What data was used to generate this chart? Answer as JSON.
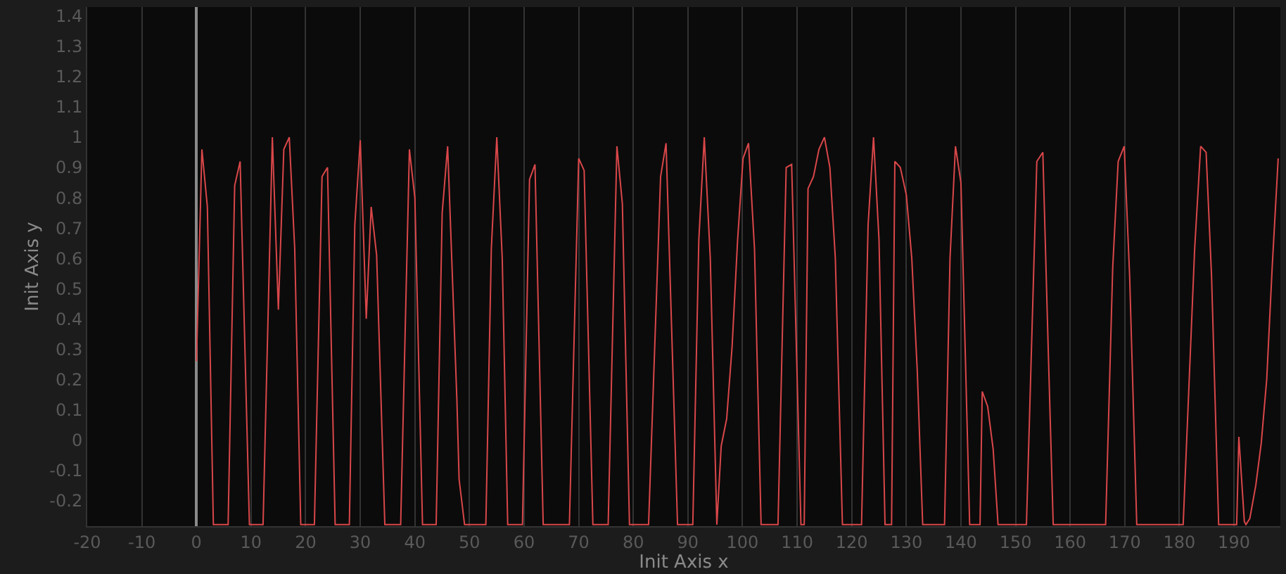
{
  "chart_data": {
    "type": "line",
    "xlabel": "Init Axis x",
    "ylabel": "Init Axis y",
    "x": [
      0,
      1,
      2,
      3.1,
      5.8,
      7,
      8,
      9.7,
      12.2,
      13.9,
      15,
      16,
      17,
      18,
      19.1,
      21.6,
      23,
      24,
      25.4,
      28,
      29,
      30,
      31.1,
      32,
      33,
      34.5,
      37.4,
      39,
      40,
      41.4,
      43.9,
      45,
      46,
      47.7,
      48.1,
      49.1,
      53,
      54,
      55,
      56,
      57,
      59.7,
      61,
      62,
      63.5,
      68.3,
      70,
      71,
      72.6,
      75.4,
      77,
      78,
      79.3,
      82.8,
      85,
      86,
      88.1,
      90.9,
      92,
      93,
      94.1,
      95.3,
      96.1,
      97.1,
      98.1,
      99.1,
      100.1,
      101.1,
      102.2,
      103.4,
      106.5,
      108,
      109,
      110.7,
      111.3,
      112,
      113,
      114,
      115,
      116,
      117,
      118.3,
      121.8,
      123,
      124,
      125,
      126.1,
      127.3,
      127.9,
      128.9,
      130,
      131,
      132,
      133,
      137,
      138,
      139,
      140,
      141.6,
      143.5,
      143.9,
      144.9,
      145.9,
      146.8,
      152,
      152.9,
      153.9,
      155,
      156,
      156.9,
      166.5,
      167.8,
      168.8,
      169.9,
      170.9,
      172.2,
      180.7,
      182.8,
      183.9,
      184.9,
      185.9,
      187.2,
      190.5,
      190.9,
      191.9,
      192.2,
      192.9,
      194,
      195,
      196,
      197,
      198.1
    ],
    "series": [
      {
        "color": "#d9474a",
        "values": [
          0.26,
          0.96,
          0.77,
          -0.28,
          -0.28,
          0.84,
          0.92,
          -0.28,
          -0.28,
          1.0,
          0.43,
          0.96,
          1.0,
          0.63,
          -0.28,
          -0.28,
          0.87,
          0.9,
          -0.28,
          -0.28,
          0.71,
          0.99,
          0.4,
          0.77,
          0.61,
          -0.28,
          -0.28,
          0.96,
          0.8,
          -0.28,
          -0.28,
          0.75,
          0.97,
          0.13,
          -0.13,
          -0.28,
          -0.28,
          0.63,
          1.0,
          0.6,
          -0.28,
          -0.28,
          0.86,
          0.91,
          -0.28,
          -0.28,
          0.93,
          0.89,
          -0.28,
          -0.28,
          0.97,
          0.78,
          -0.28,
          -0.28,
          0.87,
          0.98,
          -0.28,
          -0.28,
          0.66,
          1.0,
          0.6,
          -0.28,
          -0.02,
          0.07,
          0.31,
          0.66,
          0.93,
          0.98,
          0.63,
          -0.28,
          -0.28,
          0.9,
          0.91,
          -0.28,
          -0.28,
          0.83,
          0.87,
          0.96,
          1.0,
          0.9,
          0.6,
          -0.28,
          -0.28,
          0.71,
          1.0,
          0.66,
          -0.28,
          -0.28,
          0.92,
          0.9,
          0.81,
          0.6,
          0.23,
          -0.28,
          -0.28,
          0.6,
          0.97,
          0.85,
          -0.28,
          -0.28,
          0.16,
          0.11,
          -0.03,
          -0.28,
          -0.28,
          0.29,
          0.92,
          0.95,
          0.29,
          -0.28,
          -0.28,
          0.57,
          0.92,
          0.97,
          0.54,
          -0.28,
          -0.28,
          0.63,
          0.97,
          0.95,
          0.54,
          -0.28,
          -0.28,
          0.01,
          -0.27,
          -0.28,
          -0.26,
          -0.15,
          -0.01,
          0.2,
          0.57,
          0.93
        ]
      }
    ],
    "xlim": [
      -20,
      198.5
    ],
    "ylim": [
      -0.285,
      1.43
    ],
    "xticks": [
      -20,
      -10,
      0,
      10,
      20,
      30,
      40,
      50,
      60,
      70,
      80,
      90,
      100,
      110,
      120,
      130,
      140,
      150,
      160,
      170,
      180,
      190
    ],
    "yticks": [
      -0.2,
      -0.1,
      0,
      0.1,
      0.2,
      0.3,
      0.4,
      0.5,
      0.6,
      0.7,
      0.8,
      0.9,
      1,
      1.1,
      1.2,
      1.3,
      1.4
    ],
    "grid": "x",
    "marker": "none",
    "line_style": "solid"
  }
}
